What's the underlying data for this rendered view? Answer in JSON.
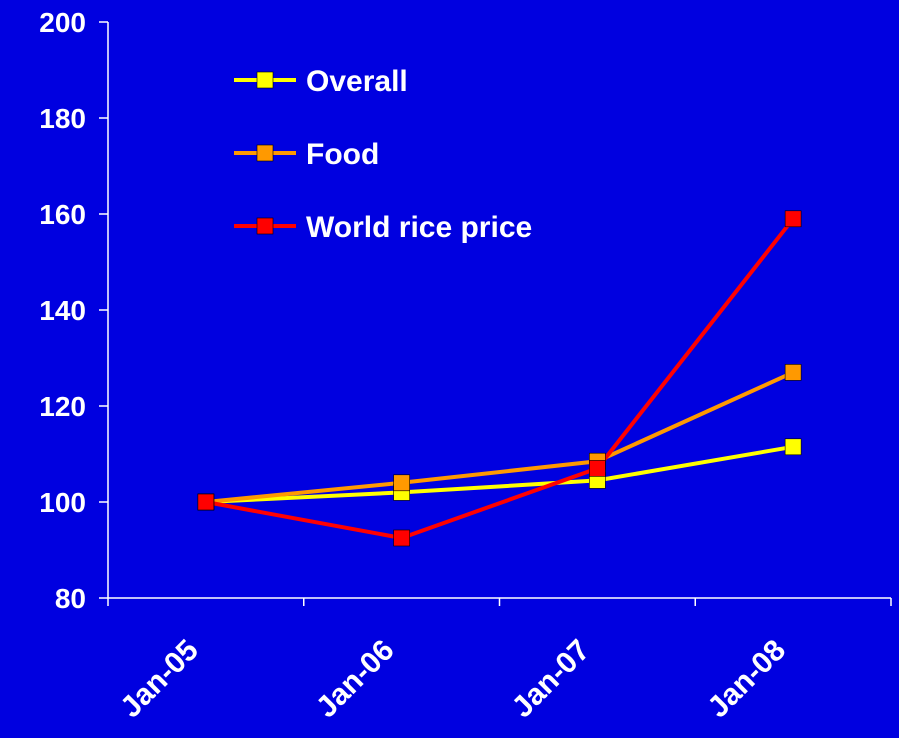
{
  "colors": {
    "background": "#0000E0",
    "axis": "#FFFFFF",
    "text": "#FFFFFF"
  },
  "chart_data": {
    "type": "line",
    "title": "",
    "xlabel": "",
    "ylabel": "",
    "categories": [
      "Jan-05",
      "Jan-06",
      "Jan-07",
      "Jan-08"
    ],
    "ylim": [
      80,
      200
    ],
    "yticks": [
      80,
      100,
      120,
      140,
      160,
      180,
      200
    ],
    "grid": false,
    "legend_position": "top-left",
    "series": [
      {
        "name": "Overall",
        "color": "#FFFF00",
        "values": [
          100,
          102,
          104.5,
          111.5
        ]
      },
      {
        "name": "Food",
        "color": "#FF9900",
        "values": [
          100,
          104,
          108.5,
          127
        ]
      },
      {
        "name": "World rice price",
        "color": "#FF0000",
        "values": [
          100,
          92.5,
          107,
          159
        ]
      }
    ]
  }
}
